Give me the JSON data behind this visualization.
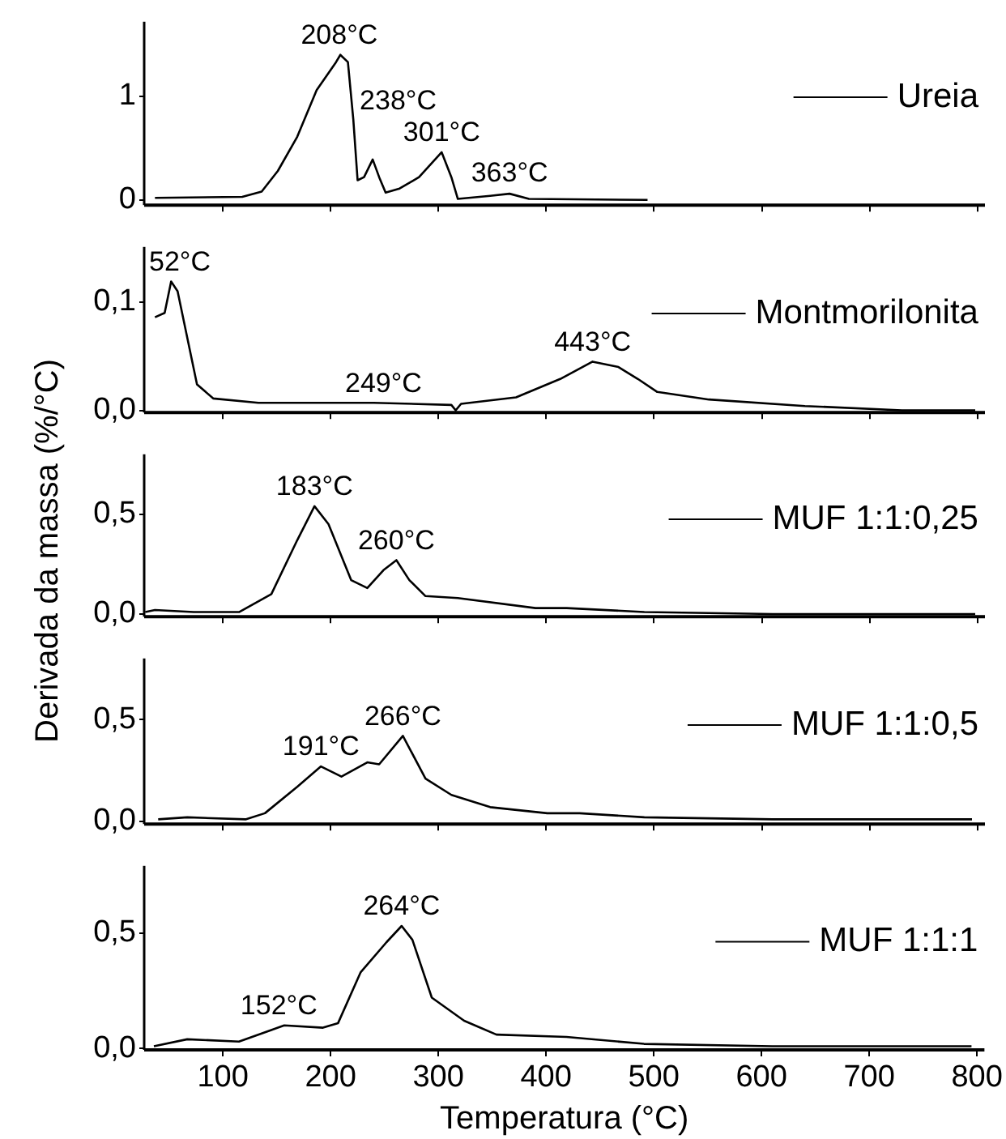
{
  "chart_data": [
    {
      "type": "line",
      "xlim": [
        27,
        807
      ],
      "xticks": [
        100,
        200,
        300,
        400,
        500,
        600,
        700,
        800
      ],
      "ylim": [
        -0.05,
        1.72
      ],
      "yticks": [
        0,
        1
      ],
      "tick_labels": "y",
      "legend": "right",
      "marker": "none",
      "line_style": "solid",
      "series": [
        {
          "name": "Ureia",
          "color": "#000000",
          "x": [
            37,
            118,
            136,
            151,
            169,
            187,
            205,
            209,
            216,
            221,
            225,
            231,
            239,
            245,
            251,
            264,
            282,
            303,
            312,
            318,
            348,
            366,
            384,
            494
          ],
          "values": [
            0.02,
            0.03,
            0.08,
            0.28,
            0.61,
            1.06,
            1.33,
            1.4,
            1.33,
            0.78,
            0.19,
            0.22,
            0.39,
            0.22,
            0.07,
            0.11,
            0.22,
            0.46,
            0.22,
            0.01,
            0.04,
            0.06,
            0.01,
            0.0
          ]
        }
      ],
      "annotations": [
        {
          "text": "208°C",
          "x": 208,
          "y": 1.4
        },
        {
          "text": "238°C",
          "x": 239,
          "y": 0.39
        },
        {
          "text": "301°C",
          "x": 303,
          "y": 0.46
        },
        {
          "text": "363°C",
          "x": 366,
          "y": 0.07
        }
      ]
    },
    {
      "type": "line",
      "xlim": [
        27,
        807
      ],
      "xticks": [
        100,
        200,
        300,
        400,
        500,
        600,
        700,
        800
      ],
      "ylim": [
        -0.002,
        0.151
      ],
      "yticks": [
        {
          "value": 0,
          "label": "0,0"
        },
        {
          "value": 0.1,
          "label": "0,1"
        }
      ],
      "tick_labels": "y",
      "legend": "right",
      "marker": "none",
      "line_style": "solid",
      "series": [
        {
          "name": "Montmorilonita",
          "color": "#000000",
          "x": [
            37,
            46,
            52,
            58,
            67,
            76,
            91,
            133,
            240,
            312,
            316,
            321,
            372,
            413,
            443,
            467,
            485,
            503,
            551,
            640,
            730,
            798
          ],
          "values": [
            0.086,
            0.09,
            0.119,
            0.11,
            0.067,
            0.024,
            0.011,
            0.007,
            0.007,
            0.005,
            0.0,
            0.006,
            0.012,
            0.029,
            0.045,
            0.04,
            0.029,
            0.017,
            0.01,
            0.004,
            0.0,
            0.0
          ]
        }
      ],
      "annotations": [
        {
          "text": "52°C",
          "x": 52,
          "y": 0.119
        },
        {
          "text": "249°C",
          "x": 249,
          "y": 0.007
        },
        {
          "text": "443°C",
          "x": 443,
          "y": 0.045
        }
      ]
    },
    {
      "type": "line",
      "xlim": [
        27,
        807
      ],
      "xticks": [
        100,
        200,
        300,
        400,
        500,
        600,
        700,
        800
      ],
      "ylim": [
        -0.013,
        0.8
      ],
      "yticks": [
        {
          "value": 0,
          "label": "0,0"
        },
        {
          "value": 0.5,
          "label": "0,5"
        }
      ],
      "tick_labels": "y",
      "legend": "right",
      "marker": "none",
      "line_style": "solid",
      "ylabel": "Derivada da massa (%/°C)",
      "series": [
        {
          "name": "MUF 1:1:0,25",
          "color": "#000000",
          "x": [
            28,
            37,
            73,
            115,
            145,
            169,
            185,
            198,
            219,
            234,
            249,
            261,
            273,
            288,
            318,
            390,
            419,
            491,
            610,
            798
          ],
          "values": [
            0.01,
            0.02,
            0.01,
            0.01,
            0.1,
            0.37,
            0.54,
            0.45,
            0.17,
            0.13,
            0.22,
            0.27,
            0.17,
            0.09,
            0.08,
            0.03,
            0.03,
            0.01,
            0.0,
            0.0
          ]
        }
      ],
      "annotations": [
        {
          "text": "183°C",
          "x": 185,
          "y": 0.54
        },
        {
          "text": "260°C",
          "x": 261,
          "y": 0.27
        }
      ]
    },
    {
      "type": "line",
      "xlim": [
        27,
        807
      ],
      "xticks": [
        100,
        200,
        300,
        400,
        500,
        600,
        700,
        800
      ],
      "ylim": [
        -0.013,
        0.8
      ],
      "yticks": [
        {
          "value": 0,
          "label": "0,0"
        },
        {
          "value": 0.5,
          "label": "0,5"
        }
      ],
      "tick_labels": "y",
      "legend": "right",
      "marker": "none",
      "line_style": "solid",
      "series": [
        {
          "name": "MUF 1:1:0,5",
          "color": "#000000",
          "x": [
            40,
            67,
            121,
            139,
            169,
            191,
            210,
            234,
            245,
            267,
            288,
            312,
            348,
            401,
            431,
            491,
            610,
            795
          ],
          "values": [
            0.01,
            0.02,
            0.01,
            0.04,
            0.17,
            0.27,
            0.22,
            0.29,
            0.28,
            0.42,
            0.21,
            0.13,
            0.07,
            0.04,
            0.04,
            0.02,
            0.01,
            0.01
          ]
        }
      ],
      "annotations": [
        {
          "text": "191°C",
          "x": 191,
          "y": 0.27
        },
        {
          "text": "266°C",
          "x": 267,
          "y": 0.42
        }
      ]
    },
    {
      "type": "line",
      "xlim": [
        27,
        807
      ],
      "xticks": [
        100,
        200,
        300,
        400,
        500,
        600,
        700,
        800
      ],
      "ylim": [
        -0.006,
        0.79
      ],
      "yticks": [
        {
          "value": 0,
          "label": "0,0"
        },
        {
          "value": 0.5,
          "label": "0,5"
        }
      ],
      "legend": "right",
      "marker": "none",
      "line_style": "solid",
      "xlabel": "Temperatura (°C)",
      "series": [
        {
          "name": "MUF 1:1:1",
          "color": "#000000",
          "x": [
            36,
            67,
            115,
            145,
            157,
            193,
            207,
            228,
            252,
            266,
            276,
            294,
            324,
            354,
            419,
            491,
            610,
            795
          ],
          "values": [
            0.01,
            0.04,
            0.03,
            0.08,
            0.1,
            0.09,
            0.11,
            0.33,
            0.46,
            0.53,
            0.47,
            0.22,
            0.12,
            0.06,
            0.05,
            0.02,
            0.01,
            0.01
          ]
        }
      ],
      "annotations": [
        {
          "text": "152°C",
          "x": 152,
          "y": 0.1
        },
        {
          "text": "264°C",
          "x": 266,
          "y": 0.53
        }
      ]
    }
  ]
}
